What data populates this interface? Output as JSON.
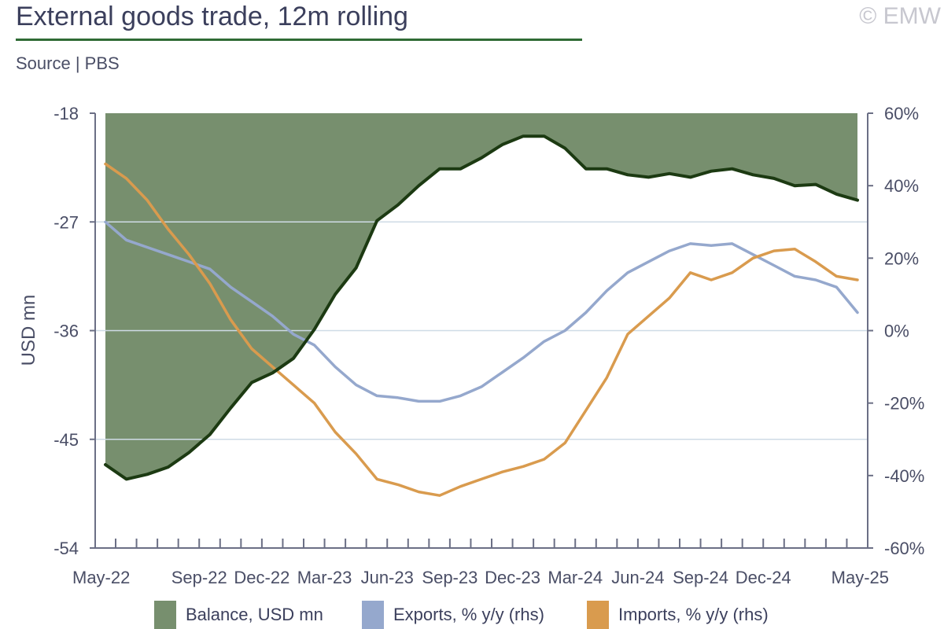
{
  "header": {
    "title": "External goods trade, 12m rolling",
    "source": "Source | PBS",
    "copyright": "© EMW"
  },
  "colors": {
    "balance_fill": "#778f6e",
    "balance_line": "#1c3a12",
    "exports": "#95a8cd",
    "imports": "#d99b4e",
    "axis": "#6b6f85",
    "grid": "#cfdbe6"
  },
  "legend": {
    "balance": "Balance, USD mn",
    "exports": "Exports, % y/y (rhs)",
    "imports": "Imports, % y/y (rhs)"
  },
  "chart_data": {
    "type": "area+line",
    "ylabel": "USD mn",
    "y_left": {
      "min": -54,
      "max": -18,
      "ticks": [
        "-18",
        "-27",
        "-36",
        "-45",
        "-54"
      ]
    },
    "y_right": {
      "min": -60,
      "max": 60,
      "ticks": [
        "60%",
        "40%",
        "20%",
        "0%",
        "-20%",
        "-40%",
        "-60%"
      ]
    },
    "x_tick_labels": [
      "May-22",
      "Sep-22",
      "Dec-22",
      "Mar-23",
      "Jun-23",
      "Sep-23",
      "Dec-23",
      "Mar-24",
      "Jun-24",
      "Sep-24",
      "Dec-24",
      "May-25"
    ],
    "grid": true,
    "legend_position": "bottom",
    "categories": [
      "May-22",
      "Jun-22",
      "Jul-22",
      "Aug-22",
      "Sep-22",
      "Oct-22",
      "Nov-22",
      "Dec-22",
      "Jan-23",
      "Feb-23",
      "Mar-23",
      "Apr-23",
      "May-23",
      "Jun-23",
      "Jul-23",
      "Aug-23",
      "Sep-23",
      "Oct-23",
      "Nov-23",
      "Dec-23",
      "Jan-24",
      "Feb-24",
      "Mar-24",
      "Apr-24",
      "May-24",
      "Jun-24",
      "Jul-24",
      "Aug-24",
      "Sep-24",
      "Oct-24",
      "Nov-24",
      "Dec-24",
      "Jan-25",
      "Feb-25",
      "Mar-25",
      "Apr-25",
      "May-25"
    ],
    "series": [
      {
        "name": "Balance, USD mn",
        "axis": "left",
        "kind": "area",
        "values": [
          -47.1,
          -48.3,
          -47.9,
          -47.3,
          -46.1,
          -44.6,
          -42.4,
          -40.3,
          -39.5,
          -38.3,
          -35.9,
          -33.0,
          -30.8,
          -26.9,
          -25.6,
          -24.0,
          -22.6,
          -22.6,
          -21.7,
          -20.6,
          -19.9,
          -19.9,
          -20.9,
          -22.6,
          -22.6,
          -23.1,
          -23.3,
          -23.0,
          -23.3,
          -22.8,
          -22.6,
          -23.1,
          -23.4,
          -24.0,
          -23.9,
          -24.7,
          -25.2
        ]
      },
      {
        "name": "Exports, % y/y (rhs)",
        "axis": "right",
        "kind": "line",
        "values": [
          30,
          25,
          23,
          21,
          19,
          17,
          12,
          8,
          4,
          -1,
          -4,
          -10,
          -15,
          -18,
          -18.5,
          -19.5,
          -19.5,
          -18,
          -15.5,
          -11.5,
          -7.5,
          -3,
          0,
          5,
          11,
          16,
          19,
          22,
          24,
          23.5,
          24,
          21,
          18,
          15,
          14,
          12,
          5
        ]
      },
      {
        "name": "Imports, % y/y (rhs)",
        "axis": "right",
        "kind": "line",
        "values": [
          46,
          42,
          36,
          28,
          21,
          13,
          3,
          -5,
          -10,
          -15,
          -20,
          -28,
          -34,
          -41,
          -42.5,
          -44.5,
          -45.5,
          -43,
          -41,
          -39,
          -37.5,
          -35.5,
          -31,
          -22,
          -13,
          -1,
          4,
          9,
          16,
          14,
          16,
          20,
          22,
          22.5,
          19,
          15,
          14
        ]
      }
    ]
  }
}
